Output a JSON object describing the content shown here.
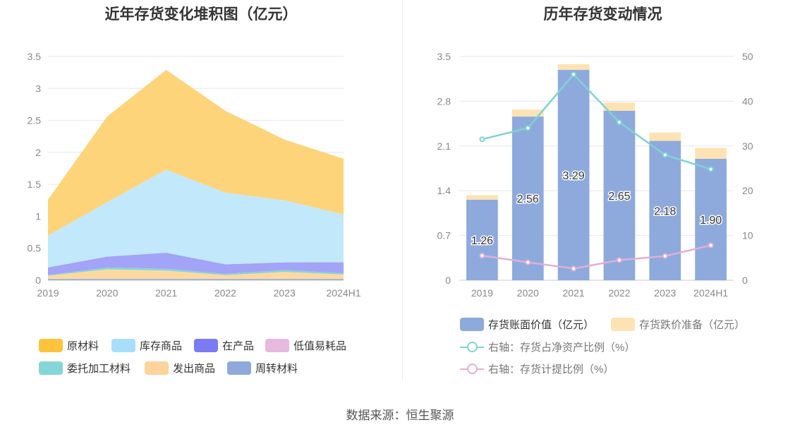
{
  "left_title": "近年存货变化堆积图（亿元）",
  "right_title": "历年存货变动情况",
  "source": "数据来源：恒生聚源",
  "chart_data": [
    {
      "type": "area",
      "stacked": true,
      "title": "近年存货变化堆积图（亿元）",
      "x": [
        "2019",
        "2020",
        "2021",
        "2022",
        "2023",
        "2024H1"
      ],
      "y_ticks": [
        "0",
        "0.5",
        "1",
        "1.5",
        "2",
        "2.5",
        "3",
        "3.5"
      ],
      "ylim": [
        0,
        3.5
      ],
      "legend_position": "bottom",
      "series": [
        {
          "name": "周转材料",
          "color": "#8eaadc",
          "values": [
            0.02,
            0.02,
            0.02,
            0.02,
            0.02,
            0.02
          ]
        },
        {
          "name": "发出商品",
          "color": "#fdd9a0",
          "values": [
            0.05,
            0.15,
            0.13,
            0.06,
            0.11,
            0.07
          ]
        },
        {
          "name": "委托加工材料",
          "color": "#85d6d9",
          "values": [
            0.01,
            0.03,
            0.03,
            0.02,
            0.03,
            0.02
          ]
        },
        {
          "name": "低值易耗品",
          "color": "#e8bde0",
          "values": [
            0.0,
            0.0,
            0.0,
            0.0,
            0.0,
            0.0
          ]
        },
        {
          "name": "在产品",
          "color": "#a3a3f7",
          "values": [
            0.12,
            0.17,
            0.25,
            0.15,
            0.12,
            0.17
          ]
        },
        {
          "name": "库存商品",
          "color": "#c2e8fb",
          "values": [
            0.5,
            0.85,
            1.3,
            1.12,
            0.97,
            0.75
          ]
        },
        {
          "name": "原材料",
          "color": "#fdd47a",
          "values": [
            0.56,
            1.34,
            1.56,
            1.28,
            0.95,
            0.87
          ]
        }
      ]
    },
    {
      "type": "bar",
      "stacked": true,
      "title": "历年存货变动情况",
      "categories": [
        "2019",
        "2020",
        "2021",
        "2022",
        "2023",
        "2024H1"
      ],
      "y_ticks_left": [
        "0",
        "0.7",
        "1.4",
        "2.1",
        "2.8",
        "3.5"
      ],
      "y_ticks_right": [
        "0",
        "10",
        "20",
        "30",
        "40",
        "50"
      ],
      "ylim_left": [
        0,
        3.5
      ],
      "ylim_right": [
        0,
        50
      ],
      "legend_position": "bottom",
      "series": [
        {
          "name": "存货账面价值（亿元）",
          "color": "#8eaadc",
          "values": [
            1.26,
            2.56,
            3.29,
            2.65,
            2.18,
            1.9
          ],
          "labels": [
            "1.26",
            "2.56",
            "3.29",
            "2.65",
            "2.18",
            "1.90"
          ]
        },
        {
          "name": "存货跌价准备（亿元）",
          "color": "#fde3b4",
          "values": [
            0.07,
            0.11,
            0.09,
            0.13,
            0.13,
            0.17
          ]
        }
      ],
      "lines": [
        {
          "name": "右轴：存货占净资产比例（%）",
          "color": "#7fd3d3",
          "axis": "right",
          "values": [
            31.5,
            34.0,
            46.0,
            35.3,
            28.0,
            24.8
          ]
        },
        {
          "name": "右轴：存货计提比例（%）",
          "color": "#e2afd8",
          "axis": "right",
          "values": [
            5.5,
            4.0,
            2.6,
            4.5,
            5.4,
            7.8
          ]
        }
      ]
    }
  ]
}
